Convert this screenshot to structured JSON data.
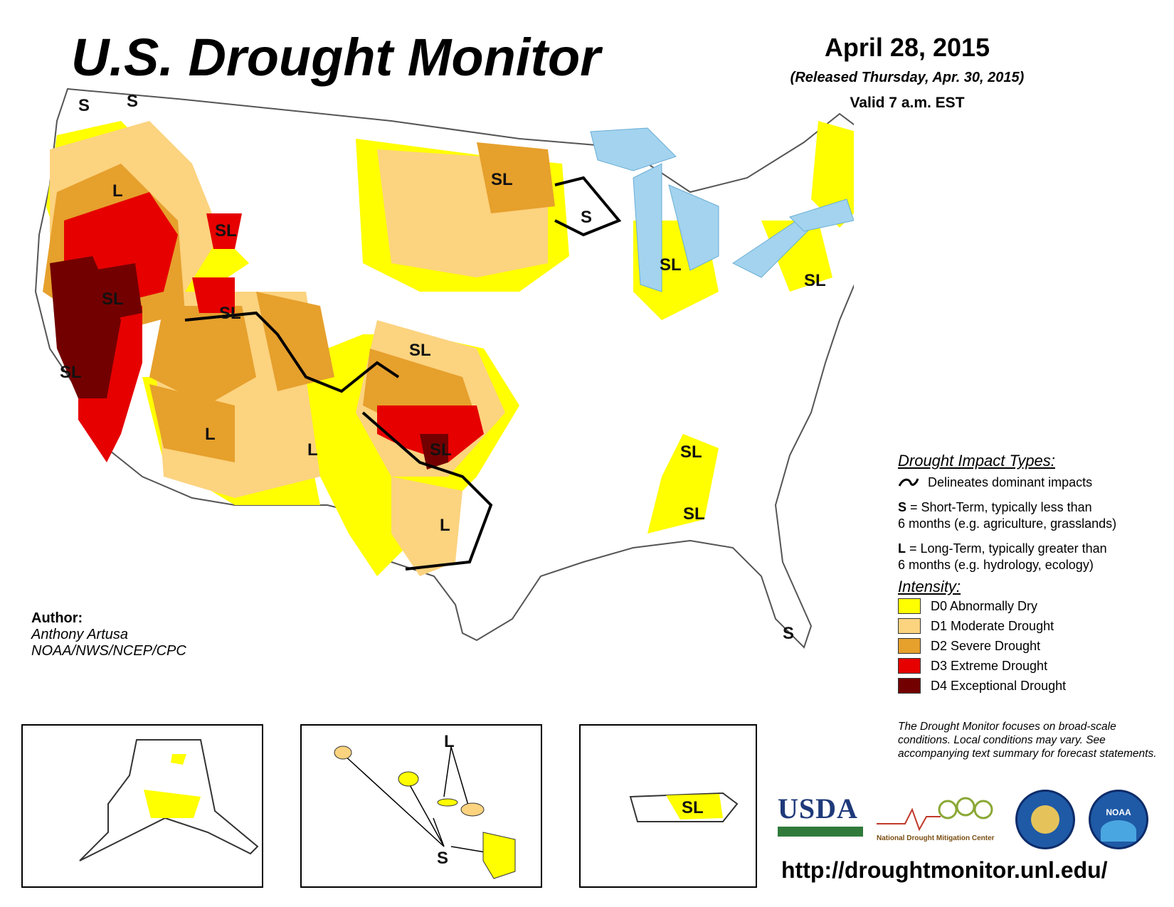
{
  "header": {
    "title": "U.S. Drought Monitor",
    "date": "April 28, 2015",
    "released": "(Released Thursday, Apr. 30, 2015)",
    "valid": "Valid 7 a.m. EST"
  },
  "author": {
    "heading": "Author:",
    "name": "Anthony Artusa",
    "org": "NOAA/NWS/NCEP/CPC"
  },
  "impact_legend": {
    "title": "Drought Impact Types:",
    "line_desc": "Delineates dominant impacts",
    "s_key": "S",
    "s_desc1": " = Short-Term, typically less than",
    "s_desc2": "6 months (e.g. agriculture, grasslands)",
    "l_key": "L",
    "l_desc1": " = Long-Term, typically greater than",
    "l_desc2": "6 months (e.g. hydrology, ecology)"
  },
  "intensity_legend": {
    "title": "Intensity:",
    "items": [
      {
        "label": "D0 Abnormally Dry",
        "color": "#ffff00"
      },
      {
        "label": "D1 Moderate Drought",
        "color": "#fcd37f"
      },
      {
        "label": "D2 Severe Drought",
        "color": "#e6a02c"
      },
      {
        "label": "D3 Extreme Drought",
        "color": "#e60000"
      },
      {
        "label": "D4 Exceptional Drought",
        "color": "#730000"
      }
    ]
  },
  "map_labels": {
    "wa_s1": "S",
    "wa_s2": "S",
    "or_l": "L",
    "id_sl": "SL",
    "nv_sl": "SL",
    "ut_sl": "SL",
    "ca_sl": "SL",
    "az_l": "L",
    "nm_l": "L",
    "mn_sl": "SL",
    "wi_s": "S",
    "mi_sl": "SL",
    "pa_sl": "SL",
    "ks_sl": "SL",
    "ok_sl": "SL",
    "tx_l": "L",
    "al_sl1": "SL",
    "al_sl2": "SL",
    "fl_s": "S",
    "hi_l": "L",
    "hi_s": "S",
    "pr_sl": "SL"
  },
  "note": "The Drought Monitor focuses on broad-scale conditions. Local conditions may vary. See accompanying text summary for forecast statements.",
  "logos": {
    "usda": "USDA",
    "ndmc": "National Drought Mitigation Center",
    "noaa": "NOAA"
  },
  "url": "http://droughtmonitor.unl.edu/"
}
